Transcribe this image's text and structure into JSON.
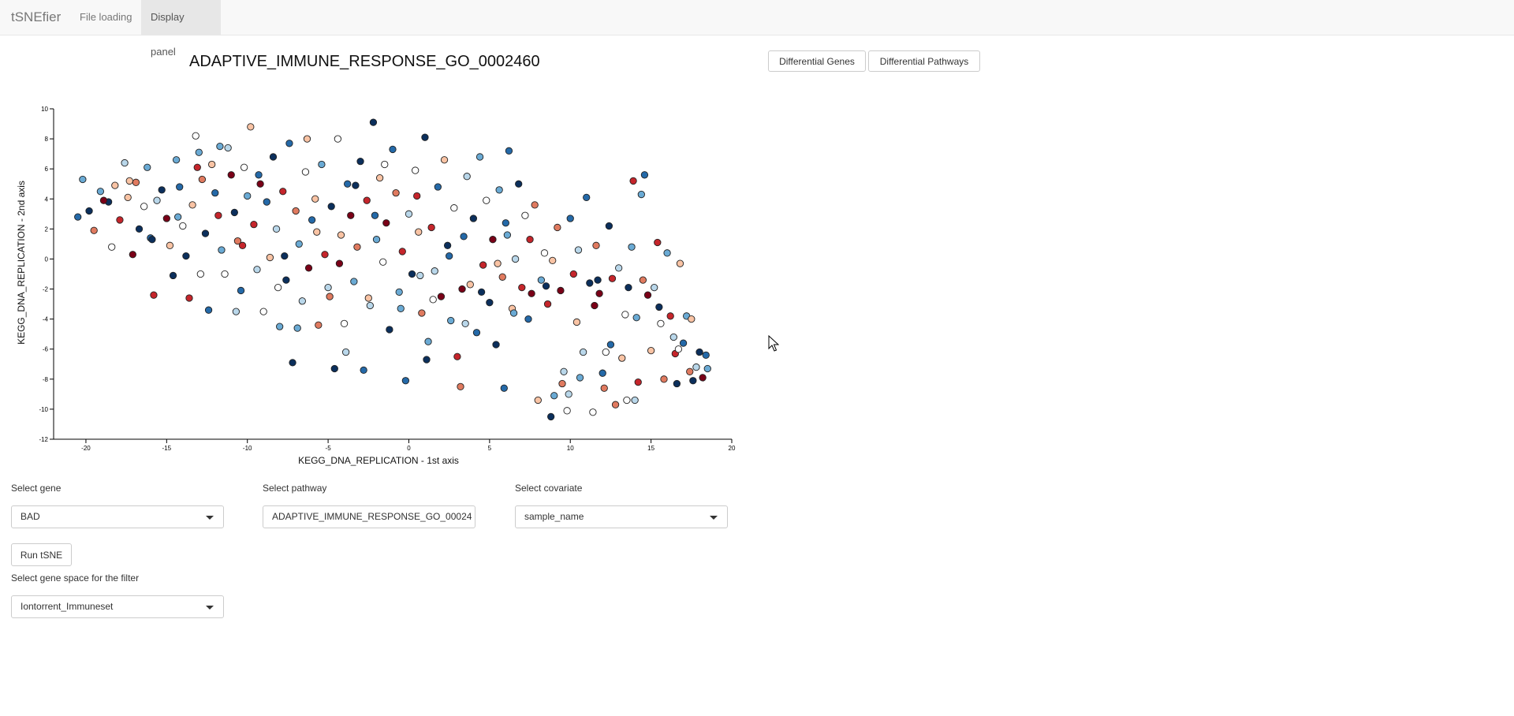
{
  "navbar": {
    "brand": "tSNEfier",
    "tabs": [
      {
        "label": "File loading",
        "active": false
      },
      {
        "label": "Display panel",
        "active": true
      }
    ]
  },
  "plot": {
    "title": "ADAPTIVE_IMMUNE_RESPONSE_GO_0002460"
  },
  "buttons": {
    "differential_genes": "Differential Genes",
    "differential_pathways": "Differential Pathways",
    "run_tsne": "Run tSNE"
  },
  "controls": {
    "gene": {
      "label": "Select gene",
      "value": "BAD"
    },
    "pathway": {
      "label": "Select pathway",
      "value": "ADAPTIVE_IMMUNE_RESPONSE_GO_0002460"
    },
    "covariate": {
      "label": "Select covariate",
      "value": "sample_name"
    },
    "gene_space": {
      "label": "Select gene space for the filter",
      "value": "Iontorrent_Immuneset"
    }
  },
  "colors": {
    "palette": [
      "#0b2f5c",
      "#2469a8",
      "#6aaad4",
      "#b9d7ea",
      "#ffffff",
      "#f9c3a4",
      "#e07a5f",
      "#c5252b",
      "#7a0017"
    ],
    "accent_nav": "#e7e7e7"
  },
  "chart_data": {
    "type": "scatter",
    "xlabel": "KEGG_DNA_REPLICATION - 1st axis",
    "ylabel": "KEGG_DNA_REPLICATION - 2nd axis",
    "xlim": [
      -22,
      20
    ],
    "ylim": [
      -12,
      10
    ],
    "xticks": [
      -20,
      -15,
      -10,
      -5,
      0,
      5,
      10,
      15,
      20
    ],
    "yticks": [
      -12,
      -10,
      -8,
      -6,
      -4,
      -2,
      0,
      2,
      4,
      6,
      8,
      10
    ],
    "grid": false,
    "points": [
      [
        -20.5,
        2.8,
        1
      ],
      [
        -20.2,
        5.3,
        2
      ],
      [
        -19.8,
        3.2,
        0
      ],
      [
        -19.5,
        1.9,
        6
      ],
      [
        -19.1,
        4.5,
        2
      ],
      [
        -18.6,
        3.8,
        0
      ],
      [
        -18.4,
        0.8,
        4
      ],
      [
        -18.2,
        4.9,
        5
      ],
      [
        -17.9,
        2.6,
        7
      ],
      [
        -17.6,
        6.4,
        3
      ],
      [
        -17.4,
        4.1,
        5
      ],
      [
        -17.1,
        0.3,
        8
      ],
      [
        -16.9,
        5.1,
        6
      ],
      [
        -16.7,
        2.0,
        0
      ],
      [
        -16.4,
        3.5,
        4
      ],
      [
        -16.2,
        6.1,
        2
      ],
      [
        -16.0,
        1.4,
        1
      ],
      [
        -15.8,
        -2.4,
        7
      ],
      [
        -15.6,
        3.9,
        3
      ],
      [
        -15.3,
        4.6,
        0
      ],
      [
        -15.0,
        2.7,
        8
      ],
      [
        -14.8,
        0.9,
        5
      ],
      [
        -14.6,
        -1.1,
        0
      ],
      [
        -14.4,
        6.6,
        2
      ],
      [
        -14.2,
        4.8,
        1
      ],
      [
        -14.0,
        2.2,
        4
      ],
      [
        -13.8,
        0.2,
        0
      ],
      [
        -13.6,
        -2.6,
        7
      ],
      [
        -13.4,
        3.6,
        5
      ],
      [
        -13.2,
        8.2,
        4
      ],
      [
        -13.0,
        7.1,
        2
      ],
      [
        -12.8,
        5.3,
        6
      ],
      [
        -12.6,
        1.7,
        0
      ],
      [
        -12.4,
        -3.4,
        1
      ],
      [
        -12.2,
        6.3,
        5
      ],
      [
        -12.0,
        4.4,
        1
      ],
      [
        -11.8,
        2.9,
        7
      ],
      [
        -11.6,
        0.6,
        2
      ],
      [
        -11.4,
        -1.0,
        4
      ],
      [
        -11.2,
        7.4,
        3
      ],
      [
        -11.0,
        5.6,
        8
      ],
      [
        -10.8,
        3.1,
        0
      ],
      [
        -10.6,
        1.2,
        6
      ],
      [
        -10.4,
        -2.1,
        1
      ],
      [
        -10.2,
        6.1,
        4
      ],
      [
        -10.0,
        4.2,
        2
      ],
      [
        -9.8,
        8.8,
        5
      ],
      [
        -9.6,
        2.3,
        7
      ],
      [
        -9.4,
        -0.7,
        3
      ],
      [
        -9.2,
        5.0,
        8
      ],
      [
        -9.0,
        -3.5,
        4
      ],
      [
        -8.8,
        3.8,
        1
      ],
      [
        -8.6,
        0.1,
        5
      ],
      [
        -8.4,
        6.8,
        0
      ],
      [
        -8.2,
        2.0,
        3
      ],
      [
        -8.0,
        -4.5,
        2
      ],
      [
        -7.8,
        4.5,
        7
      ],
      [
        -7.6,
        -1.4,
        0
      ],
      [
        -7.4,
        7.7,
        1
      ],
      [
        -7.2,
        -6.9,
        0
      ],
      [
        -7.0,
        3.2,
        6
      ],
      [
        -6.8,
        1.0,
        2
      ],
      [
        -6.6,
        -2.8,
        3
      ],
      [
        -6.4,
        5.8,
        4
      ],
      [
        -6.2,
        -0.6,
        8
      ],
      [
        -6.0,
        2.6,
        1
      ],
      [
        -5.8,
        4.0,
        5
      ],
      [
        -5.6,
        -4.4,
        6
      ],
      [
        -5.4,
        6.3,
        2
      ],
      [
        -5.2,
        0.3,
        7
      ],
      [
        -5.0,
        -1.9,
        3
      ],
      [
        -4.8,
        3.5,
        0
      ],
      [
        -4.6,
        -7.3,
        0
      ],
      [
        -4.4,
        8.0,
        4
      ],
      [
        -4.2,
        1.6,
        5
      ],
      [
        -4.0,
        -4.3,
        4
      ],
      [
        -3.8,
        5.0,
        1
      ],
      [
        -3.6,
        2.9,
        8
      ],
      [
        -3.4,
        -1.5,
        2
      ],
      [
        -3.2,
        0.8,
        6
      ],
      [
        -3.0,
        6.5,
        0
      ],
      [
        -2.8,
        -7.4,
        1
      ],
      [
        -2.6,
        3.9,
        7
      ],
      [
        -2.4,
        -3.1,
        3
      ],
      [
        -2.2,
        9.1,
        0
      ],
      [
        -2.0,
        1.3,
        2
      ],
      [
        -1.8,
        5.4,
        5
      ],
      [
        -1.6,
        -0.2,
        4
      ],
      [
        -1.4,
        2.4,
        8
      ],
      [
        -1.2,
        -4.7,
        0
      ],
      [
        -1.0,
        7.3,
        1
      ],
      [
        -0.8,
        4.4,
        6
      ],
      [
        -0.6,
        -2.2,
        2
      ],
      [
        -0.4,
        0.5,
        7
      ],
      [
        -0.2,
        -8.1,
        1
      ],
      [
        0.0,
        3.0,
        3
      ],
      [
        0.2,
        -1.0,
        0
      ],
      [
        0.4,
        5.9,
        4
      ],
      [
        0.6,
        1.8,
        5
      ],
      [
        0.8,
        -3.6,
        6
      ],
      [
        1.0,
        8.1,
        0
      ],
      [
        1.2,
        -5.5,
        2
      ],
      [
        1.4,
        2.1,
        7
      ],
      [
        1.6,
        -0.8,
        3
      ],
      [
        1.8,
        4.8,
        1
      ],
      [
        2.0,
        -2.5,
        8
      ],
      [
        2.2,
        6.6,
        5
      ],
      [
        2.4,
        0.9,
        0
      ],
      [
        2.6,
        -4.1,
        2
      ],
      [
        2.8,
        3.4,
        4
      ],
      [
        3.0,
        -6.5,
        7
      ],
      [
        3.2,
        -8.5,
        6
      ],
      [
        3.4,
        1.5,
        1
      ],
      [
        3.6,
        5.5,
        3
      ],
      [
        3.8,
        -1.7,
        5
      ],
      [
        4.0,
        2.7,
        0
      ],
      [
        4.2,
        -4.9,
        1
      ],
      [
        4.4,
        6.8,
        2
      ],
      [
        4.6,
        -0.4,
        7
      ],
      [
        4.8,
        3.9,
        4
      ],
      [
        5.0,
        -2.9,
        0
      ],
      [
        5.2,
        1.3,
        8
      ],
      [
        5.4,
        -5.7,
        0
      ],
      [
        5.6,
        4.6,
        2
      ],
      [
        5.8,
        -1.2,
        6
      ],
      [
        6.0,
        2.4,
        1
      ],
      [
        6.2,
        7.2,
        1
      ],
      [
        6.4,
        -3.3,
        5
      ],
      [
        6.6,
        0.0,
        3
      ],
      [
        6.8,
        5.0,
        0
      ],
      [
        7.0,
        -1.9,
        7
      ],
      [
        7.2,
        2.9,
        4
      ],
      [
        7.4,
        -4.0,
        1
      ],
      [
        7.6,
        -2.3,
        8
      ],
      [
        7.8,
        3.6,
        6
      ],
      [
        8.0,
        -9.4,
        5
      ],
      [
        8.2,
        -1.4,
        2
      ],
      [
        8.4,
        0.4,
        4
      ],
      [
        8.6,
        -3.0,
        7
      ],
      [
        8.8,
        -10.5,
        0
      ],
      [
        9.0,
        -9.1,
        2
      ],
      [
        9.2,
        2.1,
        6
      ],
      [
        9.4,
        -2.1,
        8
      ],
      [
        9.6,
        -7.5,
        3
      ],
      [
        9.8,
        -10.1,
        4
      ],
      [
        10.0,
        2.7,
        1
      ],
      [
        10.2,
        -1.0,
        7
      ],
      [
        10.4,
        -4.2,
        5
      ],
      [
        10.6,
        -7.9,
        2
      ],
      [
        10.8,
        -6.2,
        3
      ],
      [
        11.0,
        4.1,
        1
      ],
      [
        11.2,
        -1.6,
        0
      ],
      [
        11.4,
        -10.2,
        4
      ],
      [
        11.6,
        0.9,
        6
      ],
      [
        11.8,
        -2.3,
        8
      ],
      [
        12.0,
        -7.6,
        1
      ],
      [
        12.2,
        -6.2,
        4
      ],
      [
        12.4,
        2.2,
        0
      ],
      [
        12.6,
        -1.3,
        7
      ],
      [
        12.8,
        -9.7,
        6
      ],
      [
        13.0,
        -0.6,
        3
      ],
      [
        13.2,
        -6.6,
        5
      ],
      [
        13.4,
        -3.7,
        4
      ],
      [
        13.6,
        -1.9,
        0
      ],
      [
        13.8,
        0.8,
        2
      ],
      [
        14.0,
        -9.4,
        3
      ],
      [
        14.2,
        -8.2,
        7
      ],
      [
        14.4,
        4.3,
        2
      ],
      [
        14.6,
        5.6,
        1
      ],
      [
        14.8,
        -2.4,
        8
      ],
      [
        15.0,
        -6.1,
        5
      ],
      [
        15.2,
        -1.9,
        3
      ],
      [
        15.4,
        1.1,
        7
      ],
      [
        15.6,
        -4.3,
        4
      ],
      [
        15.8,
        -8.0,
        6
      ],
      [
        16.0,
        0.4,
        2
      ],
      [
        16.2,
        -3.8,
        7
      ],
      [
        16.4,
        -5.2,
        3
      ],
      [
        16.6,
        -8.3,
        0
      ],
      [
        16.8,
        -0.3,
        5
      ],
      [
        17.0,
        -5.6,
        1
      ],
      [
        17.2,
        -3.8,
        2
      ],
      [
        17.4,
        -7.5,
        6
      ],
      [
        17.6,
        -8.1,
        0
      ],
      [
        17.8,
        -7.2,
        3
      ],
      [
        18.0,
        -6.2,
        0
      ],
      [
        18.2,
        -7.9,
        8
      ],
      [
        18.4,
        -6.4,
        1
      ],
      [
        18.5,
        -7.3,
        2
      ],
      [
        -18.9,
        3.9,
        8
      ],
      [
        -17.3,
        5.2,
        5
      ],
      [
        -15.9,
        1.3,
        0
      ],
      [
        -14.3,
        2.8,
        2
      ],
      [
        -13.1,
        6.1,
        7
      ],
      [
        -11.7,
        7.5,
        2
      ],
      [
        -10.7,
        -3.5,
        3
      ],
      [
        -9.3,
        5.6,
        1
      ],
      [
        -8.1,
        -1.9,
        4
      ],
      [
        -6.9,
        -4.6,
        2
      ],
      [
        -5.7,
        1.8,
        5
      ],
      [
        -4.3,
        -0.3,
        8
      ],
      [
        -3.3,
        4.9,
        0
      ],
      [
        -2.5,
        -2.6,
        5
      ],
      [
        -1.5,
        6.3,
        4
      ],
      [
        -0.5,
        -3.3,
        2
      ],
      [
        0.5,
        4.2,
        7
      ],
      [
        1.5,
        -2.7,
        4
      ],
      [
        2.5,
        0.2,
        1
      ],
      [
        3.5,
        -4.3,
        3
      ],
      [
        4.5,
        -2.2,
        0
      ],
      [
        5.5,
        -0.3,
        5
      ],
      [
        6.5,
        -3.6,
        2
      ],
      [
        7.5,
        1.3,
        7
      ],
      [
        8.5,
        -1.8,
        0
      ],
      [
        9.5,
        -8.3,
        6
      ],
      [
        10.5,
        0.6,
        3
      ],
      [
        11.5,
        -3.1,
        8
      ],
      [
        12.5,
        -5.7,
        1
      ],
      [
        13.5,
        -9.4,
        4
      ],
      [
        14.5,
        -1.4,
        6
      ],
      [
        15.5,
        -3.2,
        0
      ],
      [
        16.5,
        -6.3,
        7
      ],
      [
        17.5,
        -4.0,
        5
      ],
      [
        -12.9,
        -1.0,
        4
      ],
      [
        -10.3,
        0.9,
        7
      ],
      [
        -7.7,
        0.2,
        0
      ],
      [
        -4.9,
        -2.5,
        6
      ],
      [
        -2.1,
        2.9,
        1
      ],
      [
        0.7,
        -1.1,
        3
      ],
      [
        3.3,
        -2.0,
        8
      ],
      [
        6.1,
        1.6,
        2
      ],
      [
        8.9,
        -0.1,
        5
      ],
      [
        11.7,
        -1.4,
        0
      ],
      [
        14.1,
        -3.9,
        2
      ],
      [
        16.7,
        -6.0,
        4
      ],
      [
        -6.3,
        8.0,
        5
      ],
      [
        -3.9,
        -6.2,
        3
      ],
      [
        1.1,
        -6.7,
        0
      ],
      [
        5.9,
        -8.6,
        1
      ],
      [
        9.9,
        -9.0,
        3
      ],
      [
        12.1,
        -8.6,
        6
      ],
      [
        13.9,
        5.2,
        7
      ]
    ]
  }
}
